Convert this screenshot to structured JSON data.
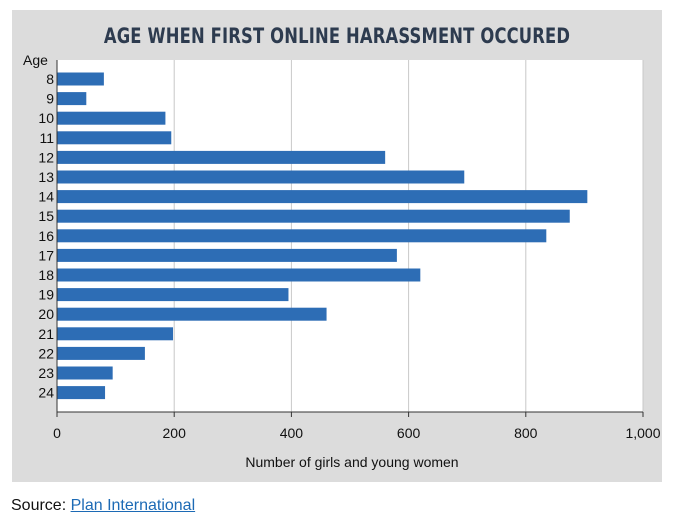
{
  "source": {
    "label": "Source:",
    "link_text": "Plan International"
  },
  "colors": {
    "bar": "#2d6db5",
    "panel_bg": "#dcdcdc",
    "plot_bg": "#ffffff",
    "grid": "#c8c8c8",
    "title": "#2d3b4f"
  },
  "chart_data": {
    "type": "bar",
    "orientation": "horizontal",
    "title": "AGE WHEN FIRST ONLINE HARASSMENT OCCURED",
    "category_axis_label": "Age",
    "xlabel": "Number of girls and young women",
    "categories": [
      "8",
      "9",
      "10",
      "11",
      "12",
      "13",
      "14",
      "15",
      "16",
      "17",
      "18",
      "19",
      "20",
      "21",
      "22",
      "23",
      "24"
    ],
    "values": [
      80,
      50,
      185,
      195,
      560,
      695,
      905,
      875,
      835,
      580,
      620,
      395,
      460,
      198,
      150,
      95,
      82
    ],
    "xlim": [
      0,
      1000
    ],
    "xticks": [
      0,
      200,
      400,
      600,
      800,
      1000
    ],
    "xtick_labels": [
      "0",
      "200",
      "400",
      "600",
      "800",
      "1,000"
    ],
    "grid": true
  }
}
